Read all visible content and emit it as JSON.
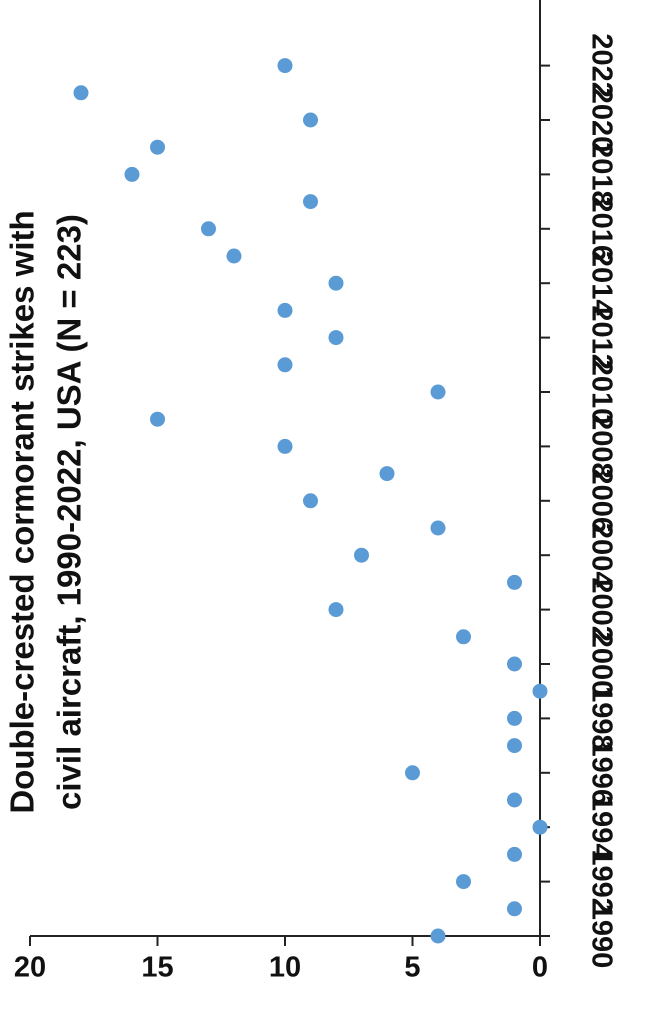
{
  "chart_data": {
    "type": "scatter",
    "title_lines": [
      "Double-crested cormorant strikes with",
      "civil aircraft, 1990-2022, USA (N = 223)"
    ],
    "xlabel": "",
    "ylabel": "",
    "x_tick_labels": [
      "1990",
      "1992",
      "1994",
      "1996",
      "1998",
      "2000",
      "2002",
      "2004",
      "2006",
      "2008",
      "2010",
      "2012",
      "2014",
      "2016",
      "2018",
      "2020",
      "2022"
    ],
    "y_tick_labels": [
      "0",
      "5",
      "10",
      "15",
      "20"
    ],
    "xlim": [
      1990,
      2022
    ],
    "ylim": [
      0,
      20
    ],
    "grid": false,
    "legend": "none",
    "point_color": "#5b9bd5",
    "points": [
      {
        "x": 1990,
        "y": 4
      },
      {
        "x": 1991,
        "y": 1
      },
      {
        "x": 1992,
        "y": 3
      },
      {
        "x": 1993,
        "y": 1
      },
      {
        "x": 1994,
        "y": 0
      },
      {
        "x": 1995,
        "y": 1
      },
      {
        "x": 1996,
        "y": 5
      },
      {
        "x": 1997,
        "y": 1
      },
      {
        "x": 1998,
        "y": 1
      },
      {
        "x": 1999,
        "y": 0
      },
      {
        "x": 2000,
        "y": 1
      },
      {
        "x": 2001,
        "y": 3
      },
      {
        "x": 2002,
        "y": 8
      },
      {
        "x": 2003,
        "y": 1
      },
      {
        "x": 2004,
        "y": 7
      },
      {
        "x": 2005,
        "y": 4
      },
      {
        "x": 2006,
        "y": 9
      },
      {
        "x": 2007,
        "y": 6
      },
      {
        "x": 2008,
        "y": 10
      },
      {
        "x": 2009,
        "y": 15
      },
      {
        "x": 2010,
        "y": 4
      },
      {
        "x": 2011,
        "y": 10
      },
      {
        "x": 2012,
        "y": 8
      },
      {
        "x": 2013,
        "y": 10
      },
      {
        "x": 2014,
        "y": 8
      },
      {
        "x": 2015,
        "y": 12
      },
      {
        "x": 2016,
        "y": 13
      },
      {
        "x": 2017,
        "y": 9
      },
      {
        "x": 2018,
        "y": 16
      },
      {
        "x": 2019,
        "y": 15
      },
      {
        "x": 2020,
        "y": 9
      },
      {
        "x": 2021,
        "y": 18
      },
      {
        "x": 2022,
        "y": 10
      }
    ]
  }
}
